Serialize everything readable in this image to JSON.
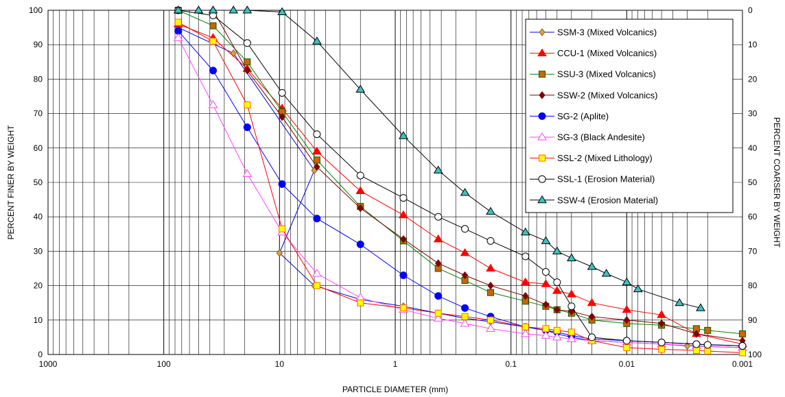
{
  "chart_data": {
    "type": "line",
    "title": "",
    "xlabel": "PARTICLE DIAMETER (mm)",
    "ylabel": "PERCENT FINER BY WEIGHT",
    "y2label": "PERCENT COARSER BY WEIGHT",
    "x_scale": "log",
    "x_reversed": true,
    "xlim": [
      1000,
      0.001
    ],
    "ylim": [
      0,
      100
    ],
    "y2lim": [
      100,
      0
    ],
    "grid": true,
    "legend_position": "top-right",
    "x_ticks": [
      1000,
      100,
      10,
      1,
      0.1,
      0.01,
      0.001
    ],
    "x_tick_labels": [
      "1000",
      "100",
      "10",
      "1",
      "0.1",
      "0.01",
      "0.001"
    ],
    "y_ticks": [
      0,
      10,
      20,
      30,
      40,
      50,
      60,
      70,
      80,
      90,
      100
    ],
    "y_tick_labels": [
      "0",
      "10",
      "20",
      "30",
      "40",
      "50",
      "60",
      "70",
      "80",
      "90",
      "100"
    ],
    "y2_tick_labels": [
      "100",
      "90",
      "80",
      "70",
      "60",
      "50",
      "40",
      "30",
      "20",
      "10",
      "0"
    ],
    "series": [
      {
        "name": "SSM-3 (Mixed Volcanics)",
        "color": "#0000cc",
        "marker": "diamond",
        "marker_fill": "#e0a040",
        "marker_stroke": "#806020",
        "x": [
          75,
          25,
          5,
          10,
          5,
          2,
          0.85,
          0.425,
          0.25,
          0.15,
          0.075,
          0.05,
          0.04,
          0.03,
          0.02,
          0.01,
          0.005,
          0.003,
          0.001
        ],
        "y": [
          95,
          87.5,
          53.5,
          29.5,
          20,
          16,
          14,
          12,
          10.5,
          9.5,
          8,
          7,
          6,
          5,
          4,
          3.5,
          3,
          2.5,
          2
        ]
      },
      {
        "name": "CCU-1 (Mixed Volcanics)",
        "color": "#ff0000",
        "marker": "triangle",
        "marker_fill": "#ff0000",
        "marker_stroke": "#ff0000",
        "x": [
          75,
          37.5,
          19,
          9.5,
          4.75,
          2,
          0.85,
          0.425,
          0.25,
          0.15,
          0.075,
          0.05,
          0.04,
          0.03,
          0.02,
          0.01,
          0.005,
          0.0025,
          0.001
        ],
        "y": [
          96,
          92,
          83,
          71.5,
          59,
          47.5,
          40.5,
          33.5,
          29.5,
          25,
          21,
          20.5,
          18.5,
          17.5,
          15,
          13,
          11.5,
          6,
          3
        ]
      },
      {
        "name": "SSU-3 (Mixed Volcanics)",
        "color": "#008000",
        "marker": "square",
        "marker_fill": "#cc6600",
        "marker_stroke": "#006000",
        "x": [
          75,
          37.5,
          19,
          9.5,
          4.75,
          2,
          0.85,
          0.425,
          0.25,
          0.15,
          0.075,
          0.05,
          0.04,
          0.03,
          0.02,
          0.01,
          0.005,
          0.0025,
          0.002,
          0.001
        ],
        "y": [
          100,
          95.5,
          85,
          70.5,
          56.5,
          43,
          33,
          25,
          21.5,
          18,
          15.5,
          14,
          13,
          12,
          10,
          9,
          8.5,
          7.5,
          7,
          6
        ]
      },
      {
        "name": "SSW-2 (Mixed Volcanics)",
        "color": "#800000",
        "marker": "diamond",
        "marker_fill": "#800000",
        "marker_stroke": "#800000",
        "x": [
          75,
          37.5,
          19,
          9.5,
          4.75,
          2,
          0.85,
          0.425,
          0.25,
          0.15,
          0.075,
          0.05,
          0.04,
          0.03,
          0.02,
          0.01,
          0.005,
          0.0025,
          0.001
        ],
        "y": [
          100,
          100,
          82.5,
          69,
          54.5,
          42.5,
          33.5,
          26.5,
          23,
          20,
          17,
          14.5,
          13,
          12.5,
          11,
          10,
          9,
          6,
          4
        ]
      },
      {
        "name": "SG-2 (Aplite)",
        "color": "#0000ff",
        "marker": "circle",
        "marker_fill": "#0000ff",
        "marker_stroke": "#0000ff",
        "x": [
          75,
          37.5,
          19,
          9.5,
          4.75,
          2,
          0.85,
          0.425,
          0.25,
          0.15,
          0.075,
          0.05,
          0.04,
          0.03,
          0.02,
          0.01,
          0.005,
          0.0025,
          0.001
        ],
        "y": [
          94,
          82.5,
          66,
          49.5,
          39.5,
          32,
          23,
          17,
          13.5,
          11,
          8,
          7,
          6.5,
          5.5,
          4.5,
          4,
          3.5,
          3,
          2.5
        ]
      },
      {
        "name": "SG-3 (Black Andesite)",
        "color": "#ff44ff",
        "marker": "triangle",
        "marker_fill": "#ffffff",
        "marker_stroke": "#ff44ff",
        "x": [
          75,
          37.5,
          19,
          9.5,
          4.75,
          2,
          0.85,
          0.425,
          0.25,
          0.15,
          0.075,
          0.05,
          0.04,
          0.03,
          0.02,
          0.01,
          0.005,
          0.0025,
          0.001
        ],
        "y": [
          92,
          72.5,
          52.5,
          35.5,
          23.5,
          16.5,
          13,
          10.5,
          9,
          7.5,
          6,
          5.5,
          5,
          4.5,
          4,
          3.5,
          3,
          2.5,
          2
        ]
      },
      {
        "name": "SSL-2 (Mixed Lithology)",
        "color": "#ff0000",
        "marker": "square",
        "marker_fill": "#ffff00",
        "marker_stroke": "#ff6600",
        "x": [
          75,
          37.5,
          19,
          9.5,
          4.75,
          2,
          0.85,
          0.425,
          0.25,
          0.15,
          0.075,
          0.05,
          0.04,
          0.03,
          0.02,
          0.01,
          0.005,
          0.0025,
          0.002,
          0.001
        ],
        "y": [
          96.5,
          91,
          72.5,
          36.5,
          20,
          15,
          13.5,
          12,
          11,
          10,
          8,
          7.5,
          7,
          6.5,
          4,
          2,
          1.5,
          1.2,
          1,
          0.5
        ]
      },
      {
        "name": "SSL-1 (Erosion Material)",
        "color": "#000000",
        "marker": "circle",
        "marker_fill": "#ffffff",
        "marker_stroke": "#000000",
        "x": [
          75,
          37.5,
          19,
          9.5,
          4.75,
          2,
          0.85,
          0.425,
          0.25,
          0.15,
          0.075,
          0.05,
          0.04,
          0.03,
          0.02,
          0.01,
          0.005,
          0.0025,
          0.002,
          0.001
        ],
        "y": [
          100,
          98.5,
          90.5,
          76,
          64,
          52,
          45.5,
          40,
          36.5,
          33,
          28.5,
          24,
          21,
          14,
          5,
          4,
          3.5,
          3,
          2.8,
          2.5
        ]
      },
      {
        "name": "SSW-4 (Erosion Material)",
        "color": "#000000",
        "marker": "triangle",
        "marker_fill": "#40c0c0",
        "marker_stroke": "#000000",
        "x": [
          75,
          50,
          37.5,
          25,
          19,
          9.5,
          4.75,
          2,
          0.85,
          0.425,
          0.25,
          0.15,
          0.075,
          0.05,
          0.04,
          0.03,
          0.02,
          0.015,
          0.01,
          0.008,
          0.0035,
          0.0023
        ],
        "y": [
          100,
          100,
          100,
          100,
          100,
          99.5,
          91,
          77,
          63.5,
          53.5,
          47,
          41.5,
          35.5,
          33,
          30,
          28,
          25.5,
          23.5,
          21,
          19,
          15,
          13.5
        ]
      }
    ]
  }
}
